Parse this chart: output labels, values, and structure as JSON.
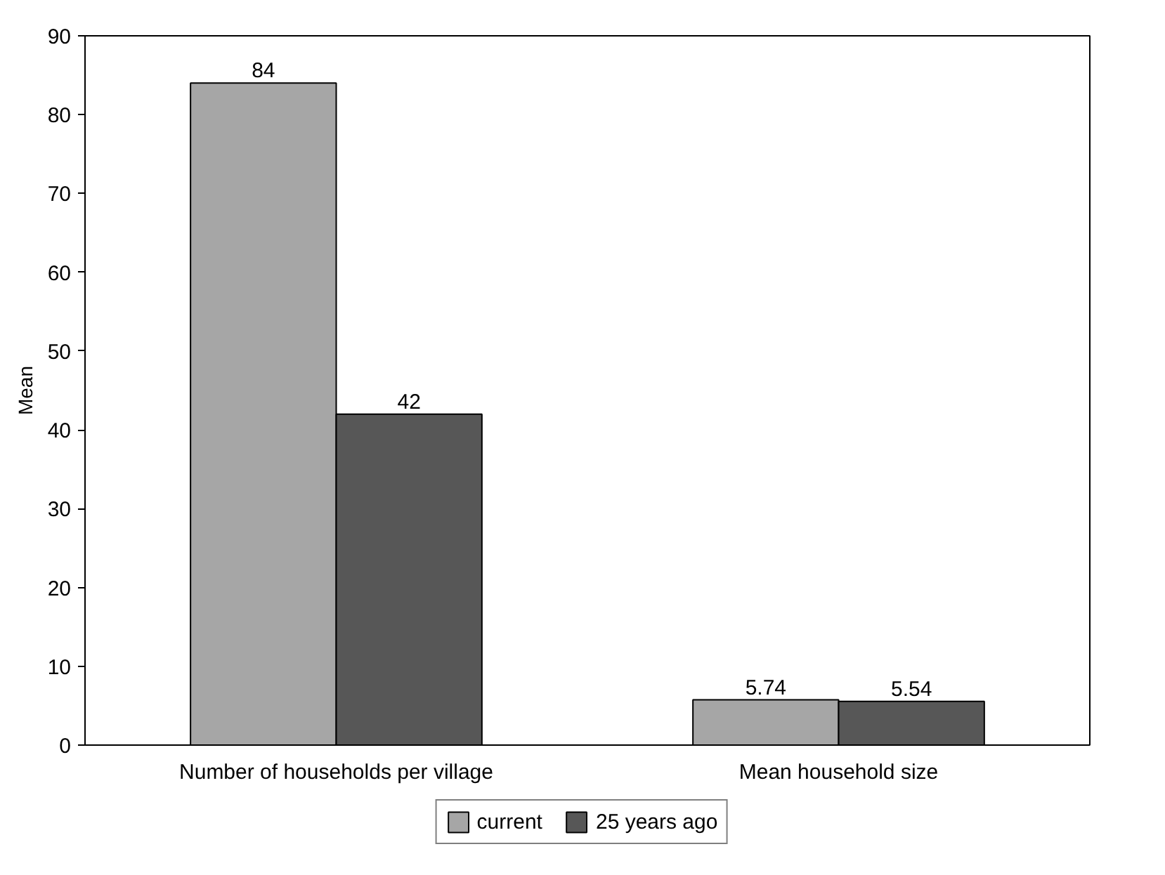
{
  "chart_data": {
    "type": "bar",
    "ylabel": "Mean",
    "categories": [
      "Number of households per village",
      "Mean household size"
    ],
    "series": [
      {
        "name": "current",
        "color": "#a6a6a6",
        "values": [
          84,
          5.74
        ]
      },
      {
        "name": "25 years ago",
        "color": "#575757",
        "values": [
          42,
          5.54
        ]
      }
    ],
    "ylim": [
      0,
      90
    ],
    "yticks": [
      0,
      10,
      20,
      30,
      40,
      50,
      60,
      70,
      80,
      90
    ],
    "grid": false,
    "legend": "bottom",
    "data_labels": true
  }
}
